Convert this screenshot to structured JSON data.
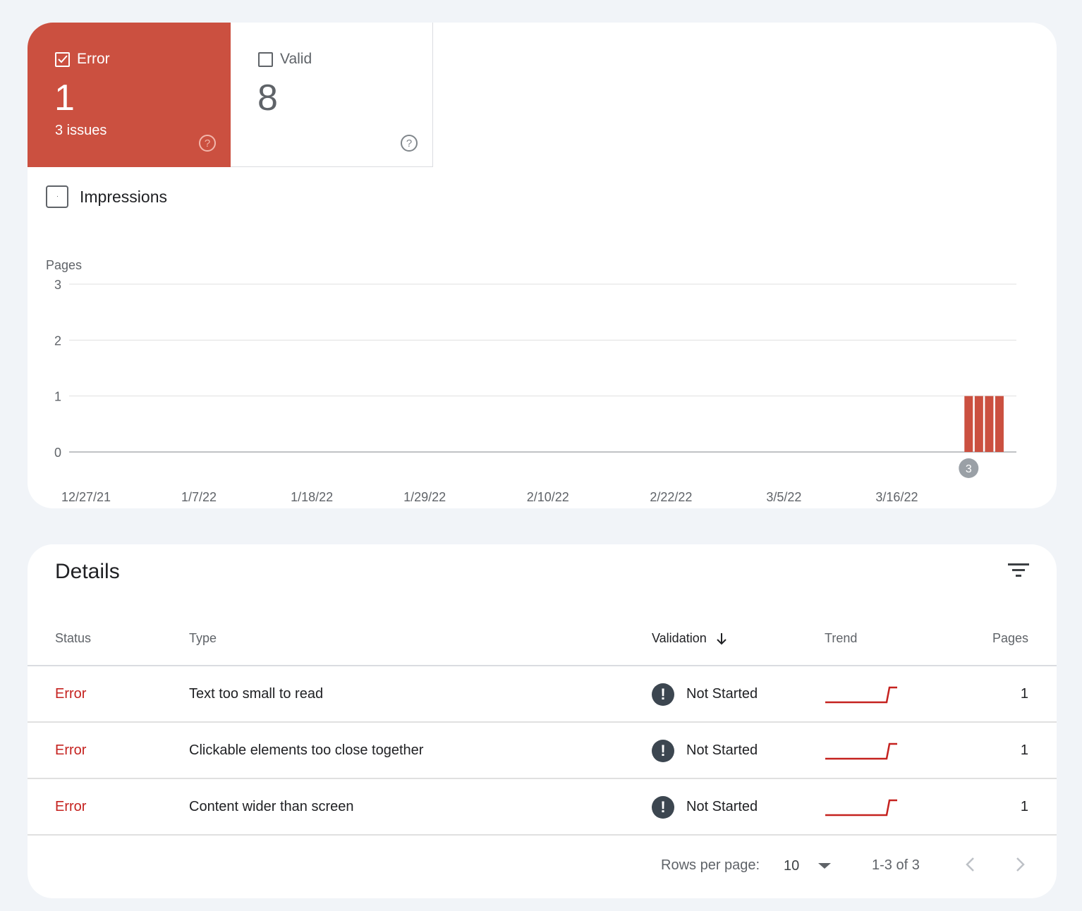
{
  "summary": {
    "error_tile": {
      "label": "Error",
      "count": "1",
      "sub": "3 issues",
      "checked": true,
      "color": "#cb5040"
    },
    "valid_tile": {
      "label": "Valid",
      "count": "8",
      "checked": false
    },
    "impressions_label": "Impressions"
  },
  "chart_data": {
    "type": "bar",
    "ylabel": "Pages",
    "ylim": [
      0,
      3
    ],
    "yticks": [
      "0",
      "1",
      "2",
      "3"
    ],
    "xticks": [
      "12/27/21",
      "1/7/22",
      "1/18/22",
      "1/29/22",
      "2/10/22",
      "2/22/22",
      "3/5/22",
      "3/16/22"
    ],
    "series": [
      {
        "color": "#cb5040",
        "values": [
          {
            "x": "3/23/22",
            "y": 1
          },
          {
            "x": "3/24/22",
            "y": 1
          },
          {
            "x": "3/25/22",
            "y": 1
          },
          {
            "x": "3/26/22",
            "y": 1
          }
        ]
      }
    ],
    "annotation": {
      "x": "3/23/22",
      "text": "3"
    },
    "grid": true
  },
  "details": {
    "title": "Details",
    "columns": {
      "status": "Status",
      "type": "Type",
      "validation": "Validation",
      "trend": "Trend",
      "pages": "Pages"
    },
    "rows": [
      {
        "status": "Error",
        "type": "Text too small to read",
        "validation": "Not Started",
        "pages": "1"
      },
      {
        "status": "Error",
        "type": "Clickable elements too close together",
        "validation": "Not Started",
        "pages": "1"
      },
      {
        "status": "Error",
        "type": "Content wider than screen",
        "validation": "Not Started",
        "pages": "1"
      }
    ],
    "footer": {
      "rows_per_page_label": "Rows per page:",
      "rows_per_page_value": "10",
      "range": "1-3 of 3"
    }
  }
}
